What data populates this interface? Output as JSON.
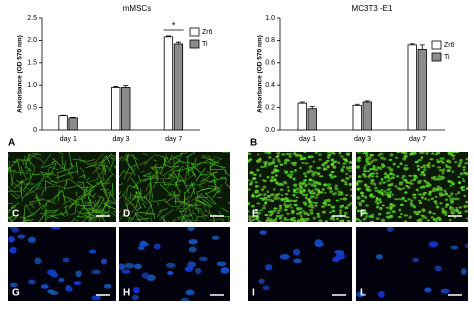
{
  "chart_data": [
    {
      "type": "bar",
      "title": "mMSCs",
      "panel_label": "A",
      "y_label": "Absorbance (OD 570 nm)",
      "categories": [
        "day 1",
        "day 3",
        "day 7"
      ],
      "series": [
        {
          "name": "Zr6",
          "color": "#ffffff",
          "values": [
            0.32,
            0.95,
            2.08
          ],
          "errors": [
            0.01,
            0.02,
            0.02
          ]
        },
        {
          "name": "Ti",
          "color": "#8c8c8c",
          "values": [
            0.27,
            0.95,
            1.92
          ],
          "errors": [
            0.01,
            0.04,
            0.04
          ]
        }
      ],
      "ylim": [
        0,
        2.5
      ],
      "yticks": [
        0,
        0.5,
        {
          "value": 1,
          "label": "1.0"
        },
        1.5,
        {
          "value": 2,
          "label": "2.0"
        },
        2.5
      ],
      "annotation": "*"
    },
    {
      "type": "bar",
      "title": "MC3T3 -E1",
      "panel_label": "B",
      "y_label": "Absorbance (OD 570 nm)",
      "categories": [
        "day 1",
        "day 3",
        "day 7"
      ],
      "series": [
        {
          "name": "Zr6",
          "color": "#ffffff",
          "values": [
            0.24,
            0.22,
            0.76
          ],
          "errors": [
            0.01,
            0.01,
            0.01
          ]
        },
        {
          "name": "Ti",
          "color": "#8c8c8c",
          "values": [
            0.19,
            0.25,
            0.72
          ],
          "errors": [
            0.02,
            0.01,
            0.04
          ]
        }
      ],
      "ylim": [
        0,
        1
      ],
      "yticks": [
        {
          "value": 0,
          "label": "0.0"
        },
        0.2,
        0.4,
        0.6,
        0.8,
        {
          "value": 1,
          "label": "1.0"
        }
      ]
    }
  ],
  "panels": [
    {
      "label": "C"
    },
    {
      "label": "D"
    },
    {
      "label": "E"
    },
    {
      "label": "F"
    },
    {
      "label": "G"
    },
    {
      "label": "H"
    },
    {
      "label": "I"
    },
    {
      "label": "L"
    }
  ]
}
